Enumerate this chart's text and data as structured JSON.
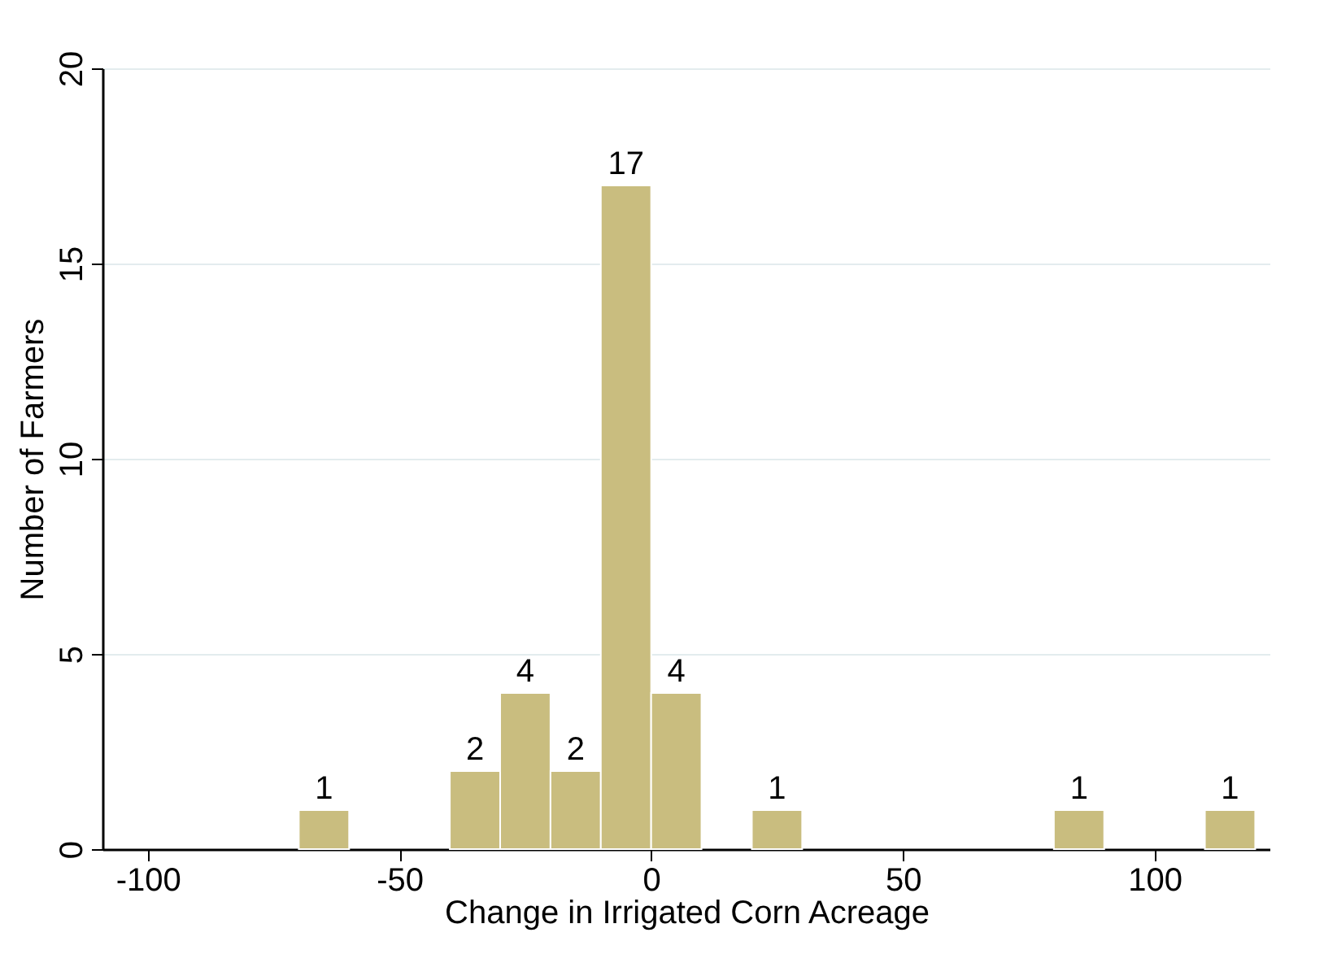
{
  "chart_data": {
    "type": "histogram",
    "xlabel": "Change in Irrigated Corn Acreage",
    "ylabel": "Number of Farmers",
    "bins": [
      -70,
      -60,
      -50,
      -40,
      -30,
      -20,
      -10,
      0,
      10,
      20,
      30,
      40,
      50,
      60,
      70,
      80,
      90,
      100,
      110,
      120
    ],
    "values": [
      1,
      0,
      0,
      2,
      4,
      2,
      17,
      4,
      0,
      1,
      0,
      0,
      0,
      0,
      0,
      1,
      0,
      0,
      1
    ],
    "value_labels": [
      "1",
      null,
      null,
      "2",
      "4",
      "2",
      "17",
      "4",
      null,
      "1",
      null,
      null,
      null,
      null,
      null,
      "1",
      null,
      null,
      "1"
    ],
    "color": "#c9bd7f",
    "xlim": [
      -109,
      123
    ],
    "xticks": [
      -100,
      -50,
      0,
      50,
      100
    ],
    "ylim": [
      0,
      20
    ],
    "yticks": [
      0,
      5,
      10,
      15,
      20
    ],
    "grid": "y"
  }
}
